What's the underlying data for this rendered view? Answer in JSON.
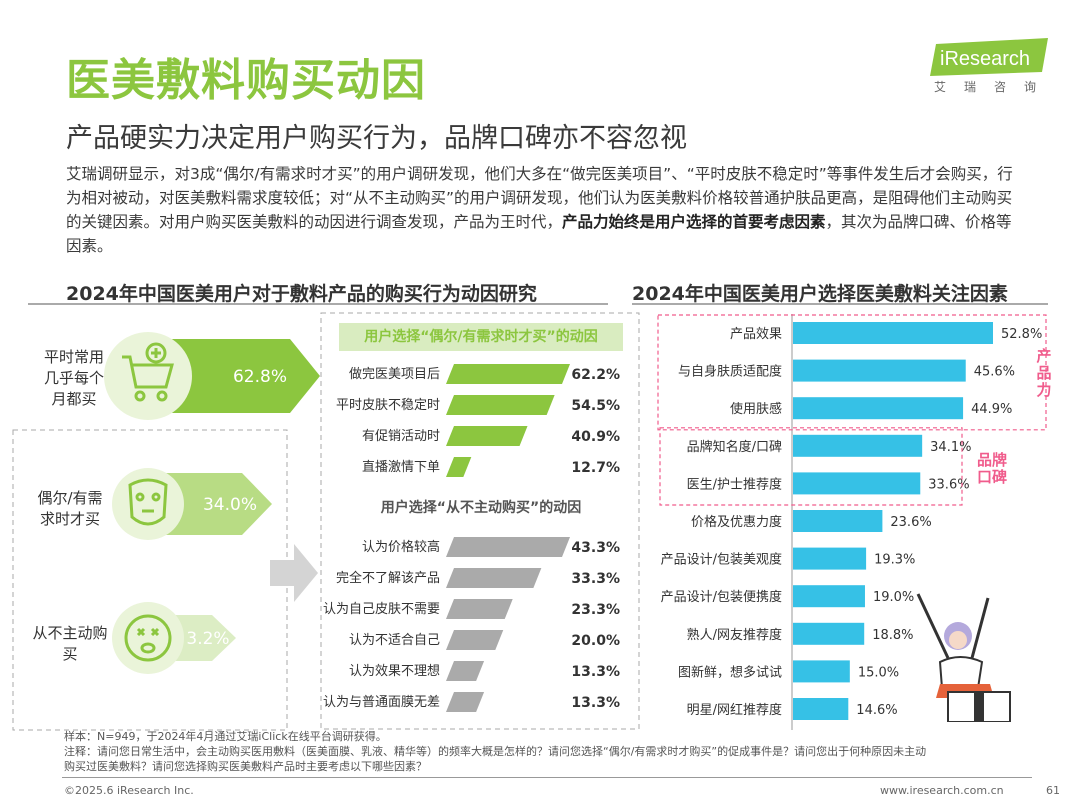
{
  "title": "医美敷料购买动因",
  "subtitle": "产品硬实力决定用户购买行为，品牌口碑亦不容忽视",
  "intro": {
    "part1": "艾瑞调研显示，对3成“偶尔/有需求时才买”的用户调研发现，他们大多在“做完医美项目”、“平时皮肤不稳定时”等事件发生后才会购买，行为相对被动，对医美敷料需求度较低；对“从不主动购买”的用户调研发现，他们认为医美敷料价格较普通护肤品更高，是阻碍他们主动购买的关键因素。对用户购买医美敷料的动因进行调查发现，产品为王时代，",
    "bold": "产品力始终是用户选择的首要考虑因素",
    "part2": "，其次为品牌口碑、价格等因素。"
  },
  "logo": {
    "brand": "iResearch",
    "sub": "艾瑞咨询"
  },
  "left_section_title": "2024年中国医美用户对于敷料产品的购买行为动因研究",
  "right_section_title": "2024年中国医美用户选择医美敷料关注因素",
  "segments": [
    {
      "label": "平时常用几乎每个月都买",
      "pct": "62.8%"
    },
    {
      "label": "偶尔/有需求时才买",
      "pct": "34.0%"
    },
    {
      "label": "从不主动购买",
      "pct": "3.2%"
    }
  ],
  "occasional_header": "用户选择“偶尔/有需求时才买”的动因",
  "never_header": "用户选择“从不主动购买”的动因",
  "colors": {
    "green": "#8cc63f",
    "gray": "#aaaaaa",
    "blue": "#36c1e6",
    "pink": "#f05c8c"
  },
  "chart_data": [
    {
      "type": "bar",
      "title": "用户选择“偶尔/有需求时才买”的动因",
      "categories": [
        "做完医美项目后",
        "平时皮肤不稳定时",
        "有促销活动时",
        "直播激情下单"
      ],
      "values": [
        62.2,
        54.5,
        40.9,
        12.7
      ],
      "labels": [
        "62.2%",
        "54.5%",
        "40.9%",
        "12.7%"
      ],
      "unit": "%"
    },
    {
      "type": "bar",
      "title": "用户选择“从不主动购买”的动因",
      "categories": [
        "认为价格较高",
        "完全不了解该产品",
        "认为自己皮肤不需要",
        "认为不适合自己",
        "认为效果不理想",
        "认为与普通面膜无差"
      ],
      "values": [
        43.3,
        33.3,
        23.3,
        20.0,
        13.3,
        13.3
      ],
      "labels": [
        "43.3%",
        "33.3%",
        "23.3%",
        "20.0%",
        "13.3%",
        "13.3%"
      ],
      "unit": "%"
    },
    {
      "type": "bar",
      "title": "2024年中国医美用户选择医美敷料关注因素",
      "categories": [
        "产品效果",
        "与自身肤质适配度",
        "使用肤感",
        "品牌知名度/口碑",
        "医生/护士推荐度",
        "价格及优惠力度",
        "产品设计/包装美观度",
        "产品设计/包装便携度",
        "熟人/网友推荐度",
        "图新鲜，想多试试",
        "明星/网红推荐度"
      ],
      "values": [
        52.8,
        45.6,
        44.9,
        34.1,
        33.6,
        23.6,
        19.3,
        19.0,
        18.8,
        15.0,
        14.6
      ],
      "labels": [
        "52.8%",
        "45.6%",
        "44.9%",
        "34.1%",
        "33.6%",
        "23.6%",
        "19.3%",
        "19.0%",
        "18.8%",
        "15.0%",
        "14.6%"
      ],
      "groups": [
        {
          "name": "产品力",
          "items": 3
        },
        {
          "name": "品牌口碑",
          "items": 2
        }
      ],
      "unit": "%"
    }
  ],
  "notes": {
    "sample": "样本：N=949，于2024年4月通过艾瑞iClick在线平台调研获得。",
    "note1": "注释：请问您日常生活中，会主动购买医用敷料（医美面膜、乳液、精华等）的频率大概是怎样的？请问您选择“偶尔/有需求时才购买”的促成事件是？请问您出于何种原因未主动",
    "note2": "购买过医美敷料？请问您选择购买医美敷料产品时主要考虑以下哪些因素？"
  },
  "footer": {
    "copyright": "©2025.6 iResearch Inc.",
    "url": "www.iresearch.com.cn",
    "page": "61"
  }
}
